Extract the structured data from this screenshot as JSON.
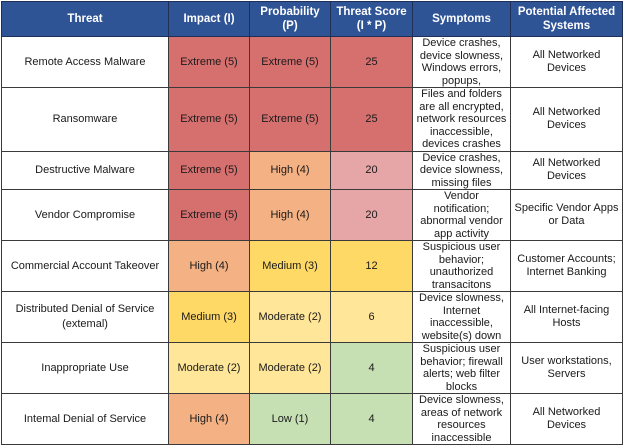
{
  "headers": {
    "threat": "Threat",
    "impact": "Impact (I)",
    "probability": "Probability (P)",
    "score_line1": "Threat Score",
    "score_line2": "(I * P)",
    "symptoms": "Symptoms",
    "systems_line1": "Potential Affected",
    "systems_line2": "Systems"
  },
  "colors": {
    "header_bg": "#2f5496",
    "extreme": "#d6706f",
    "high": "#f4b183",
    "medium": "#ffd966",
    "moderate": "#ffe699",
    "low": "#c6e0b4",
    "score_25": "#d6706f",
    "score_20": "#e6a5a6",
    "score_12": "#ffd966",
    "score_6": "#ffe699",
    "score_4": "#c6e0b4"
  },
  "rows": [
    {
      "threat": "Remote Access Malware",
      "impact": "Extreme (5)",
      "impact_level": "extreme",
      "probability": "Extreme (5)",
      "probability_level": "extreme",
      "score": "25",
      "score_level": "score_25",
      "symptoms": "Device crashes, device slowness, Windows errors, popups,",
      "systems": "All Networked Devices"
    },
    {
      "threat": "Ransomware",
      "impact": "Extreme (5)",
      "impact_level": "extreme",
      "probability": "Extreme (5)",
      "probability_level": "extreme",
      "score": "25",
      "score_level": "score_25",
      "symptoms": "Files and folders are all encrypted, network resources inaccessible, devices crashes",
      "systems": "All Networked Devices"
    },
    {
      "threat": "Destructive Malware",
      "impact": "Extreme (5)",
      "impact_level": "extreme",
      "probability": "High (4)",
      "probability_level": "high",
      "score": "20",
      "score_level": "score_20",
      "symptoms": "Device crashes, device slowness, missing files",
      "systems": "All Networked Devices"
    },
    {
      "threat": "Vendor Compromise",
      "impact": "Extreme (5)",
      "impact_level": "extreme",
      "probability": "High (4)",
      "probability_level": "high",
      "score": "20",
      "score_level": "score_20",
      "symptoms": "Vendor notification; abnormal vendor app activity",
      "systems": "Specific Vendor Apps or Data"
    },
    {
      "threat": "Commercial Account Takeover",
      "impact": "High (4)",
      "impact_level": "high",
      "probability": "Medium (3)",
      "probability_level": "medium",
      "score": "12",
      "score_level": "score_12",
      "symptoms": "Suspicious user behavior; unauthorized transacitons",
      "systems": "Customer Accounts; Internet Banking"
    },
    {
      "threat": "Distributed Denial of Service (extemal)",
      "impact": "Medium (3)",
      "impact_level": "medium",
      "probability": "Moderate (2)",
      "probability_level": "moderate",
      "score": "6",
      "score_level": "score_6",
      "symptoms": "Device slowness, Internet inaccessible, website(s) down",
      "systems": "All Internet-facing Hosts"
    },
    {
      "threat": "Inappropriate Use",
      "impact": "Moderate (2)",
      "impact_level": "moderate",
      "probability": "Moderate (2)",
      "probability_level": "moderate",
      "score": "4",
      "score_level": "score_4",
      "symptoms": "Suspicious user behavior; firewall alerts; web filter blocks",
      "systems": "User workstations, Servers"
    },
    {
      "threat": "Intemal Denial of Service",
      "impact": "High (4)",
      "impact_level": "high",
      "probability": "Low (1)",
      "probability_level": "low",
      "score": "4",
      "score_level": "score_4",
      "symptoms": "Device slowness, areas of network resources inaccessible",
      "systems": "All Networked Devices"
    }
  ]
}
